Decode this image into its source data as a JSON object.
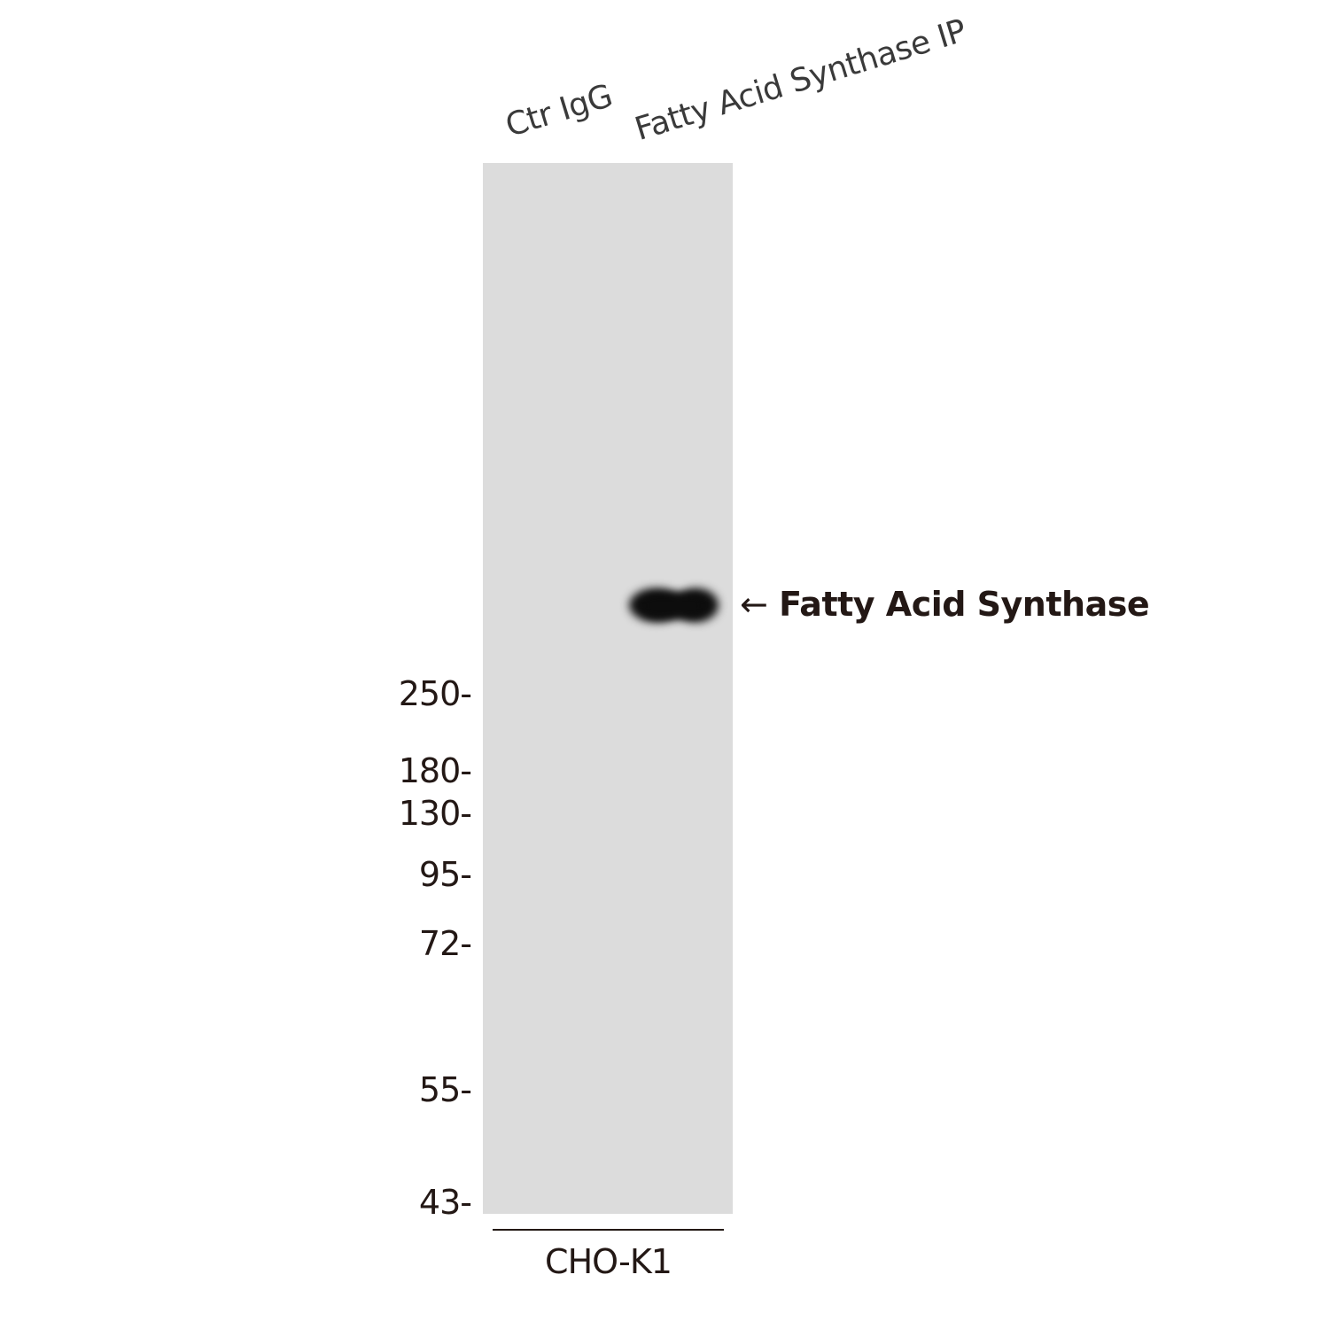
{
  "lanes": [
    "Ctr IgG",
    "Fatty Acid Synthase IP"
  ],
  "markers": [
    "250-",
    "180-",
    "130-",
    "95-",
    "72-",
    "55-",
    "43-"
  ],
  "target": {
    "arrow": "←",
    "label": "Fatty Acid Synthase"
  },
  "sample": "CHO-K1",
  "colors": {
    "membrane": "#dcdcdc",
    "band": "#0d0d0d",
    "text": "#231815"
  }
}
